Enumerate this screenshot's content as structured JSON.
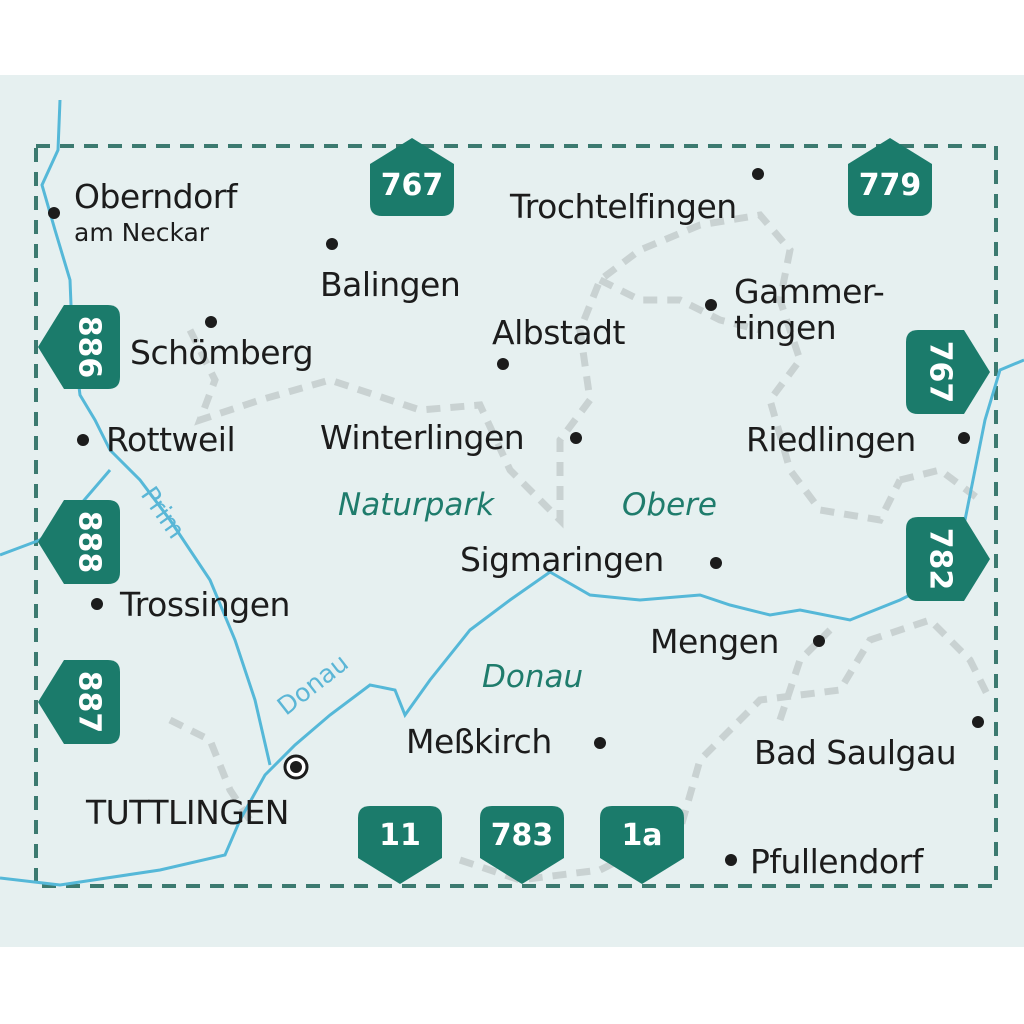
{
  "colors": {
    "background": "#e6f0f0",
    "badge": "#1b7b6b",
    "river": "#55b8d8",
    "border": "#3c7a70",
    "boundary": "#c8d0d0"
  },
  "cities": {
    "oberndorf": "Oberndorf",
    "oberndorf_sub": "am Neckar",
    "balingen": "Balingen",
    "trochtelfingen": "Trochtelfingen",
    "gammertingen_1": "Gammer-",
    "gammertingen_2": "tingen",
    "albstadt": "Albstadt",
    "schoemberg": "Schömberg",
    "rottweil": "Rottweil",
    "winterlingen": "Winterlingen",
    "riedlingen": "Riedlingen",
    "sigmaringen": "Sigmaringen",
    "trossingen": "Trossingen",
    "mengen": "Mengen",
    "messkirch": "Meßkirch",
    "bad_saulgau": "Bad Saulgau",
    "tuttlingen": "TUTTLINGEN",
    "pfullendorf": "Pfullendorf"
  },
  "areas": {
    "naturpark": "Naturpark",
    "obere": "Obere",
    "donau": "Donau"
  },
  "rivers": {
    "prim": "Prim",
    "donau": "Donau"
  },
  "adjacent_maps": {
    "top_767": "767",
    "top_779": "779",
    "left_886": "886",
    "left_888": "888",
    "left_887": "887",
    "right_767": "767",
    "right_782": "782",
    "bottom_11": "11",
    "bottom_783": "783",
    "bottom_1a": "1a"
  }
}
